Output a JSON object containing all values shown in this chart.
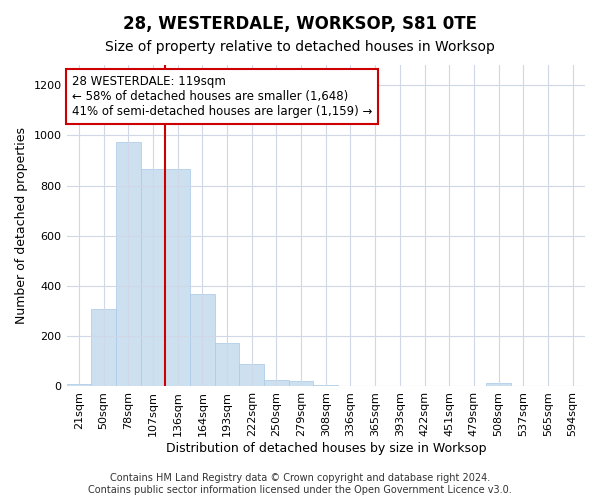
{
  "title": "28, WESTERDALE, WORKSOP, S81 0TE",
  "subtitle": "Size of property relative to detached houses in Worksop",
  "xlabel": "Distribution of detached houses by size in Worksop",
  "ylabel": "Number of detached properties",
  "categories": [
    "21sqm",
    "50sqm",
    "78sqm",
    "107sqm",
    "136sqm",
    "164sqm",
    "193sqm",
    "222sqm",
    "250sqm",
    "279sqm",
    "308sqm",
    "336sqm",
    "365sqm",
    "393sqm",
    "422sqm",
    "451sqm",
    "479sqm",
    "508sqm",
    "537sqm",
    "565sqm",
    "594sqm"
  ],
  "values": [
    10,
    310,
    975,
    865,
    865,
    370,
    175,
    90,
    25,
    20,
    5,
    0,
    0,
    0,
    0,
    0,
    0,
    15,
    0,
    0,
    0
  ],
  "bar_color": "#cce0f0",
  "bar_edgecolor": "#a8c8e8",
  "vline_x": 3.5,
  "vline_color": "#cc0000",
  "annotation_text": "28 WESTERDALE: 119sqm\n← 58% of detached houses are smaller (1,648)\n41% of semi-detached houses are larger (1,159) →",
  "annotation_box_color": "#ffffff",
  "annotation_box_edgecolor": "#cc0000",
  "ylim": [
    0,
    1280
  ],
  "yticks": [
    0,
    200,
    400,
    600,
    800,
    1000,
    1200
  ],
  "footer": "Contains HM Land Registry data © Crown copyright and database right 2024.\nContains public sector information licensed under the Open Government Licence v3.0.",
  "background_color": "#ffffff",
  "plot_background_color": "#ffffff",
  "title_fontsize": 12,
  "subtitle_fontsize": 10,
  "label_fontsize": 9,
  "tick_fontsize": 8,
  "annotation_fontsize": 8.5,
  "footer_fontsize": 7
}
